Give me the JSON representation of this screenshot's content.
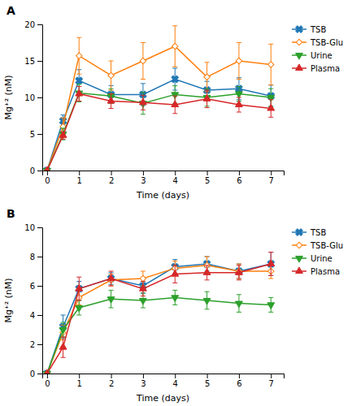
{
  "chart_data": [
    {
      "type": "line",
      "title": "A",
      "xlabel": "Time (days)",
      "ylabel": "Mg⁺² (nM)",
      "x": [
        0,
        0.5,
        1,
        2,
        3,
        4,
        5,
        6,
        7
      ],
      "xlim": [
        -0.15,
        7.4
      ],
      "xticks": [
        0,
        1,
        2,
        3,
        4,
        5,
        6,
        7
      ],
      "ylim": [
        0,
        20
      ],
      "yticks": [
        0,
        5,
        10,
        15,
        20
      ],
      "grid": false,
      "legend": "right",
      "series": [
        {
          "name": "TSB",
          "marker": "x",
          "values": [
            0,
            6.8,
            12.3,
            10.4,
            10.4,
            12.5,
            11.0,
            11.2,
            10.2
          ],
          "errors": [
            0,
            0.8,
            1.5,
            1.2,
            1.5,
            1.5,
            1.2,
            1.5,
            1.5
          ]
        },
        {
          "name": "TSB-Glu",
          "marker": "diamond-open",
          "values": [
            0,
            6.0,
            15.7,
            13.0,
            15.0,
            17.0,
            12.8,
            15.0,
            14.5
          ],
          "errors": [
            0,
            1.2,
            2.5,
            2.0,
            2.5,
            2.8,
            2.0,
            2.5,
            2.8
          ]
        },
        {
          "name": "Urine",
          "marker": "triangle-down",
          "values": [
            0,
            5.0,
            10.6,
            10.2,
            9.2,
            10.4,
            10.0,
            10.5,
            10.0
          ],
          "errors": [
            0,
            0.8,
            1.2,
            1.0,
            1.5,
            1.2,
            1.2,
            1.0,
            1.2
          ]
        },
        {
          "name": "Plasma",
          "marker": "triangle-up",
          "values": [
            0,
            4.8,
            10.5,
            9.5,
            9.3,
            9.0,
            9.8,
            9.0,
            8.5
          ],
          "errors": [
            0,
            0.5,
            1.0,
            1.0,
            1.0,
            1.2,
            1.2,
            1.0,
            1.2
          ]
        }
      ]
    },
    {
      "type": "line",
      "title": "B",
      "xlabel": "Time (days)",
      "ylabel": "Mg⁺² (nM)",
      "x": [
        0,
        0.5,
        1,
        2,
        3,
        4,
        5,
        6,
        7
      ],
      "xlim": [
        -0.15,
        7.4
      ],
      "xticks": [
        0,
        1,
        2,
        3,
        4,
        5,
        6,
        7
      ],
      "ylim": [
        0,
        10
      ],
      "yticks": [
        0,
        2,
        4,
        6,
        8,
        10
      ],
      "grid": false,
      "legend": "right",
      "series": [
        {
          "name": "TSB",
          "marker": "x",
          "values": [
            0,
            3.2,
            5.8,
            6.5,
            6.0,
            7.3,
            7.5,
            7.0,
            7.5
          ],
          "errors": [
            0,
            0.8,
            0.5,
            0.4,
            0.5,
            0.5,
            0.5,
            0.5,
            0.8
          ]
        },
        {
          "name": "TSB-Glu",
          "marker": "diamond-open",
          "values": [
            0,
            2.8,
            5.2,
            6.4,
            6.5,
            7.2,
            7.4,
            7.0,
            7.0
          ],
          "errors": [
            0,
            0.5,
            0.5,
            0.4,
            0.5,
            0.5,
            0.6,
            0.5,
            0.5
          ]
        },
        {
          "name": "Urine",
          "marker": "triangle-down",
          "values": [
            0,
            3.0,
            4.5,
            5.1,
            5.0,
            5.2,
            5.0,
            4.8,
            4.7
          ],
          "errors": [
            0,
            0.5,
            0.5,
            0.6,
            0.5,
            0.5,
            0.6,
            0.6,
            0.5
          ]
        },
        {
          "name": "Plasma",
          "marker": "triangle-up",
          "values": [
            0,
            1.8,
            5.8,
            6.5,
            5.8,
            6.8,
            6.9,
            6.9,
            7.5
          ],
          "errors": [
            0,
            0.7,
            0.8,
            0.5,
            0.5,
            0.6,
            0.5,
            0.5,
            0.8
          ]
        }
      ]
    }
  ]
}
